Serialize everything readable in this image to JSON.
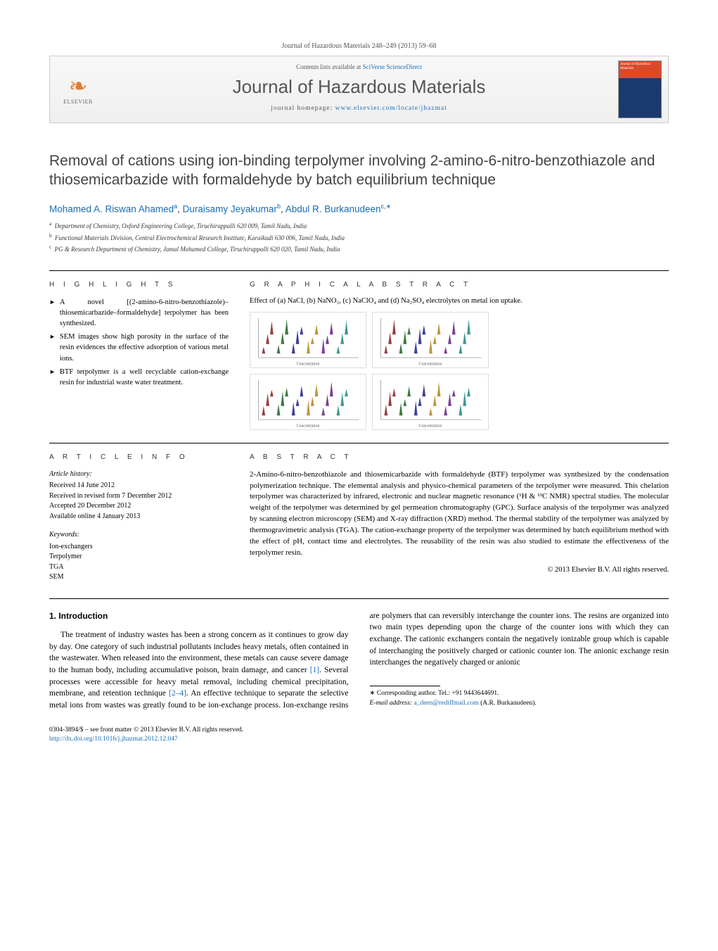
{
  "journal": {
    "header_line": "Journal of Hazardous Materials 248–249 (2013) 59–68",
    "contents_line_prefix": "Contents lists available at ",
    "contents_link": "SciVerse ScienceDirect",
    "title": "Journal of Hazardous Materials",
    "homepage_prefix": "journal homepage: ",
    "homepage_url": "www.elsevier.com/locate/jhazmat",
    "elsevier_label": "ELSEVIER",
    "cover_label": "Journal of Hazardous Materials"
  },
  "article": {
    "title": "Removal of cations using ion-binding terpolymer involving 2-amino-6-nitro-benzothiazole and thiosemicarbazide with formaldehyde by batch equilibrium technique",
    "authors_html_parts": {
      "a1_name": "Mohamed A. Riswan Ahamed",
      "a1_sup": "a",
      "a2_name": "Duraisamy Jeyakumar",
      "a2_sup": "b",
      "a3_name": "Abdul R. Burkanudeen",
      "a3_sup": "c,",
      "a3_star": "∗"
    },
    "affiliations": {
      "a": "Department of Chemistry, Oxford Engineering College, Tiruchirappalli 620 009, Tamil Nadu, India",
      "b": "Functional Materials Division, Central Electrochemical Research Institute, Karaikudi 630 006, Tamil Nadu, India",
      "c": "PG & Research Department of Chemistry, Jamal Mohamed College, Tiruchirappalli 620 020, Tamil Nadu, India"
    }
  },
  "highlights": {
    "label": "h i g h l i g h t s",
    "items": [
      "A novel [(2-amino-6-nitro-benzothiazole)–thiosemicarbazide–formaldehyde] terpolymer has been synthesized.",
      "SEM images show high porosity in the surface of the resin evidences the effective adsorption of various metal ions.",
      "BTF terpolymer is a well recyclable cation-exchange resin for industrial waste water treatment."
    ]
  },
  "graphical": {
    "label": "g r a p h i c a l   a b s t r a c t",
    "caption": "Effect of (a) NaCl, (b) NaNO₃, (c) NaClO₄ and (d) Na₂SO₄ electrolytes on metal ion uptake.",
    "charts": [
      {
        "xlabel": "Concentration",
        "cones": 18
      },
      {
        "xlabel": "Concentration",
        "cones": 18
      },
      {
        "xlabel": "Concentration",
        "cones": 18
      },
      {
        "xlabel": "Concentration",
        "cones": 18
      }
    ],
    "cone_colors": [
      "#8b2a2a",
      "#2a6b2a",
      "#2a2a8b",
      "#b58a2a",
      "#6a2a8b",
      "#2a8b8b"
    ]
  },
  "article_info": {
    "label": "a r t i c l e   i n f o",
    "history_head": "Article history:",
    "history": [
      "Received 14 June 2012",
      "Received in revised form 7 December 2012",
      "Accepted 20 December 2012",
      "Available online 4 January 2013"
    ],
    "keywords_head": "Keywords:",
    "keywords": [
      "Ion-exchangers",
      "Terpolymer",
      "TGA",
      "SEM"
    ]
  },
  "abstract": {
    "label": "a b s t r a c t",
    "text": "2-Amino-6-nitro-benzothiazole and thiosemicarbazide with formaldehyde (BTF) terpolymer was synthesized by the condensation polymerization technique. The elemental analysis and physico-chemical parameters of the terpolymer were measured. This chelation terpolymer was characterized by infrared, electronic and nuclear magnetic resonance (¹H & ¹³C NMR) spectral studies. The molecular weight of the terpolymer was determined by gel permeation chromatography (GPC). Surface analysis of the terpolymer was analyzed by scanning electron microscopy (SEM) and X-ray diffraction (XRD) method. The thermal stability of the terpolymer was analyzed by thermogravimetric analysis (TGA). The cation-exchange property of the terpolymer was determined by batch equilibrium method with the effect of pH, contact time and electrolytes. The reusability of the resin was also studied to estimate the effectiveness of the terpolymer resin.",
    "copyright": "© 2013 Elsevier B.V. All rights reserved."
  },
  "body": {
    "heading": "1.  Introduction",
    "para1": "The treatment of industry wastes has been a strong concern as it continues to grow day by day. One category of such industrial pollutants includes heavy metals, often contained in the wastewater. When released into the environment, these metals can cause severe damage to the human body, including accumulative poison, ",
    "para1_tail": "brain damage, and cancer ",
    "ref1": "[1]",
    "para1_cont": ". Several processes were accessible for heavy metal removal, including chemical precipitation, membrane, and retention technique ",
    "ref2": "[2–4]",
    "para1_end": ". An effective technique to separate the selective metal ions from wastes was greatly found to be ion-exchange process. Ion-exchange resins are polymers that can reversibly interchange the counter ions. The resins are organized into two main types depending upon the charge of the counter ions with which they can exchange. The cationic exchangers contain the negatively ionizable group which is capable of interchanging the positively charged or cationic counter ion. The anionic exchange resin interchanges the negatively charged or anionic"
  },
  "footnotes": {
    "corr_label": "∗ Corresponding author. Tel.: +91 9443644691.",
    "email_label": "E-mail address: ",
    "email": "a_deen@rediffmail.com",
    "email_suffix": " (A.R. Burkanudeen)."
  },
  "footer": {
    "line1_prefix": "0304-3894/$ – see front matter © 2013 Elsevier B.V. All rights reserved.",
    "doi_url": "http://dx.doi.org/10.1016/j.jhazmat.2012.12.047"
  },
  "colors": {
    "link": "#1a6db5",
    "elsevier_orange": "#e67a2e",
    "cover_red": "#d94a2a",
    "cover_blue": "#1a3a6e"
  }
}
